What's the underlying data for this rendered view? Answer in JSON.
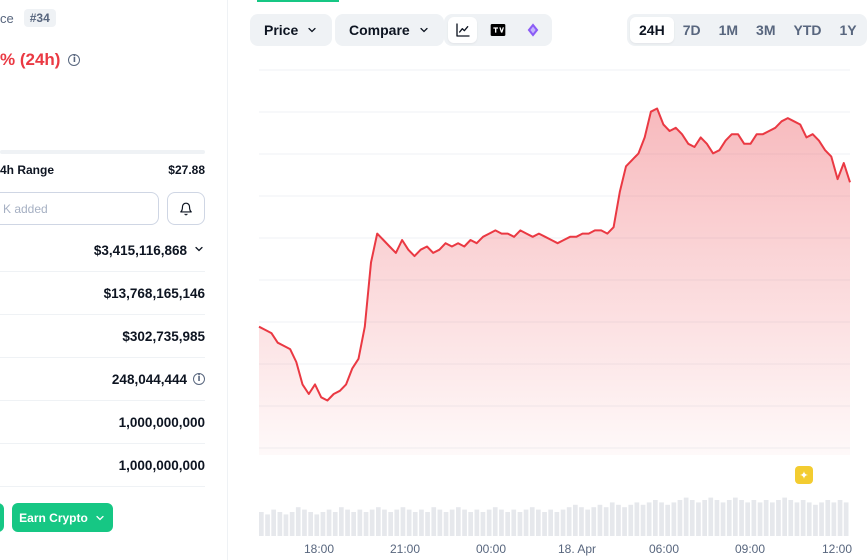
{
  "coin": {
    "name_fragment": "ce",
    "rank_badge": "#34",
    "change_24h": "% (24h)",
    "range_label": "4h Range",
    "range_high": "$27.88",
    "watchlist_placeholder": "K added"
  },
  "stats": [
    {
      "value": "$3,415,116,868",
      "has_dropdown": true
    },
    {
      "value": "$13,768,165,146"
    },
    {
      "value": "$302,735,985"
    },
    {
      "value": "248,044,444",
      "has_info": true
    },
    {
      "value": "1,000,000,000"
    },
    {
      "value": "1,000,000,000"
    }
  ],
  "actions": {
    "earn_crypto": "Earn Crypto"
  },
  "toolbar": {
    "price_label": "Price",
    "compare_label": "Compare",
    "chart_icons": [
      "line-chart-icon",
      "tradingview-icon",
      "ai-sparkle-icon"
    ],
    "ranges": [
      "24H",
      "7D",
      "1M",
      "3M",
      "YTD",
      "1Y"
    ],
    "active_range": "24H"
  },
  "colors": {
    "up": "#16c784",
    "down": "#ea3943",
    "text": "#0d1421",
    "muted": "#58667e",
    "surface": "#eff2f5"
  },
  "chart_data": {
    "type": "area",
    "x_tick_labels": [
      "18:00",
      "21:00",
      "00:00",
      "18. Apr",
      "06:00",
      "09:00",
      "12:00"
    ],
    "price_series": [
      235,
      234,
      233,
      230,
      229,
      228,
      224,
      217,
      214,
      217,
      213,
      212,
      214,
      215,
      217,
      222,
      225,
      235,
      255,
      264,
      262,
      260,
      258,
      262,
      259,
      257,
      259,
      260,
      258,
      259,
      261,
      260,
      261,
      260,
      262,
      261,
      263,
      264,
      265,
      264,
      264,
      263,
      265,
      264,
      263,
      264,
      263,
      262,
      261,
      262,
      263,
      263,
      264,
      264,
      265,
      265,
      264,
      266,
      277,
      285,
      287,
      289,
      294,
      302,
      303,
      298,
      296,
      297,
      295,
      292,
      291,
      294,
      292,
      289,
      290,
      293,
      295,
      295,
      292,
      292,
      295,
      295,
      296,
      297,
      299,
      300,
      299,
      298,
      294,
      295,
      293,
      290,
      288,
      281,
      286,
      280
    ],
    "volume_series": [
      10,
      9,
      11,
      10,
      9,
      10,
      12,
      11,
      10,
      9,
      10,
      11,
      10,
      12,
      11,
      10,
      11,
      10,
      11,
      12,
      11,
      10,
      11,
      12,
      11,
      10,
      11,
      10,
      12,
      11,
      10,
      11,
      12,
      11,
      10,
      11,
      10,
      11,
      12,
      11,
      10,
      11,
      10,
      11,
      12,
      11,
      10,
      11,
      10,
      11,
      12,
      13,
      12,
      11,
      12,
      13,
      12,
      14,
      13,
      12,
      13,
      14,
      13,
      14,
      15,
      14,
      13,
      14,
      15,
      16,
      15,
      14,
      15,
      16,
      15,
      14,
      15,
      16,
      15,
      14,
      15,
      14,
      15,
      14,
      15,
      16,
      15,
      14,
      15,
      14,
      13,
      14,
      15,
      14,
      15,
      14
    ],
    "y_range": [
      195,
      315
    ],
    "grid": true
  }
}
